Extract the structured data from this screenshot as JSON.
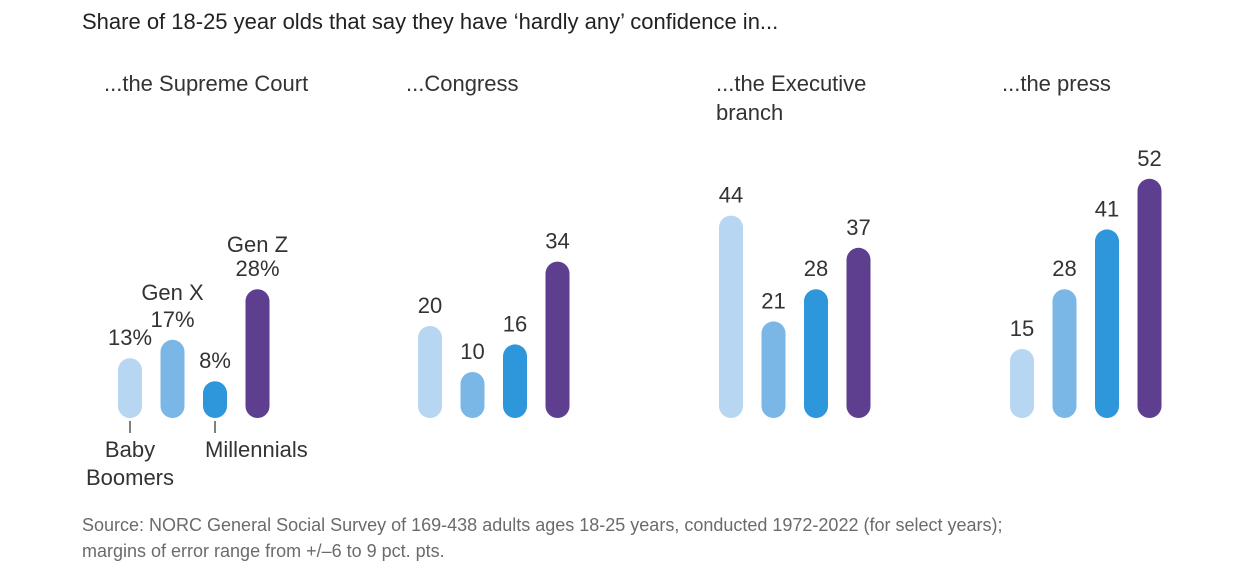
{
  "title": "Share of 18-25 year olds that say they have ‘hardly any’ confidence in...",
  "source": {
    "line1": "Source: NORC General Social Survey of 169-438 adults ages 18-25 years, conducted 1972-2022 (for select years);",
    "line2": "margins of error range from +/–6 to 9 pct. pts."
  },
  "colors": {
    "Baby Boomers": "#b7d6f1",
    "Gen X": "#7bb7e6",
    "Millennials": "#2e97db",
    "Gen Z": "#5e3e8e"
  },
  "chart_data": {
    "type": "bar",
    "unit": "%",
    "series_names": [
      "Baby Boomers",
      "Gen X",
      "Millennials",
      "Gen Z"
    ],
    "legend_labels": {
      "baby_boomers": [
        "Baby",
        "Boomers"
      ],
      "millennials": "Millennials",
      "gen_x": "Gen X",
      "gen_z": "Gen Z"
    },
    "panels": [
      {
        "title": [
          "...the Supreme Court"
        ],
        "values": [
          13,
          17,
          8,
          28
        ],
        "value_labels": [
          "13%",
          "17%",
          "8%",
          "28%"
        ]
      },
      {
        "title": [
          "...Congress"
        ],
        "values": [
          20,
          10,
          16,
          34
        ],
        "value_labels": [
          "20",
          "10",
          "16",
          "34"
        ]
      },
      {
        "title": [
          "...the Executive",
          "branch"
        ],
        "values": [
          44,
          21,
          28,
          37
        ],
        "value_labels": [
          "44",
          "21",
          "28",
          "37"
        ]
      },
      {
        "title": [
          "...the press"
        ],
        "values": [
          15,
          28,
          41,
          52
        ],
        "value_labels": [
          "15",
          "28",
          "41",
          "52"
        ]
      }
    ]
  }
}
